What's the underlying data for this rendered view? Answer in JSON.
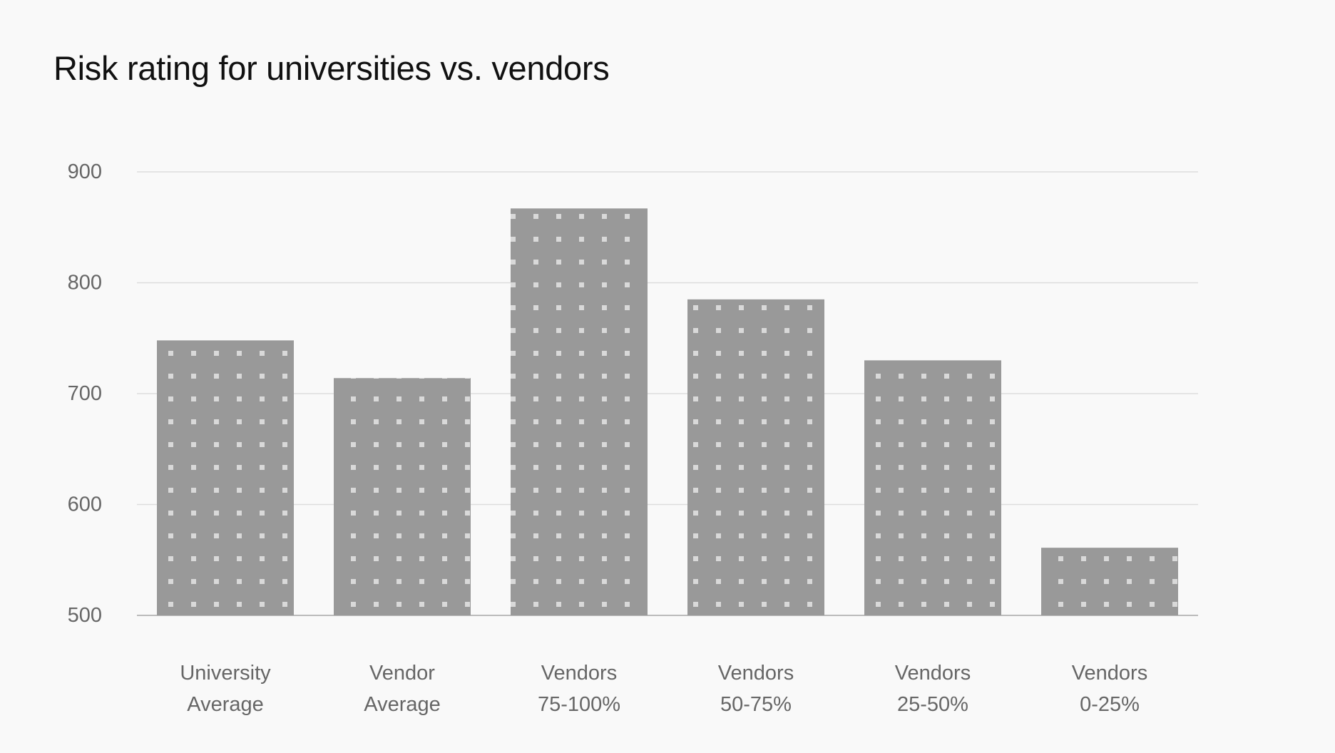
{
  "colors": {
    "background": "#f9f9f9",
    "bar": "#999999",
    "bar_dots": "#d9d9d9",
    "gridline": "#dddddd",
    "baseline": "#bbbbbb",
    "tick_text": "#666666",
    "title_text": "#111111"
  },
  "chart_data": {
    "type": "bar",
    "title": "Risk rating for universities vs. vendors",
    "xlabel": "",
    "ylabel": "",
    "ylim": [
      500,
      900
    ],
    "yticks": [
      500,
      600,
      700,
      800,
      900
    ],
    "grid": true,
    "legend": "none",
    "bar_fill": "dotted pattern",
    "categories": [
      [
        "University",
        "Average"
      ],
      [
        "Vendor",
        "Average"
      ],
      [
        "Vendors",
        "75-100%"
      ],
      [
        "Vendors",
        "50-75%"
      ],
      [
        "Vendors",
        "25-50%"
      ],
      [
        "Vendors",
        "0-25%"
      ]
    ],
    "values": [
      748,
      714,
      867,
      785,
      730,
      561
    ]
  }
}
